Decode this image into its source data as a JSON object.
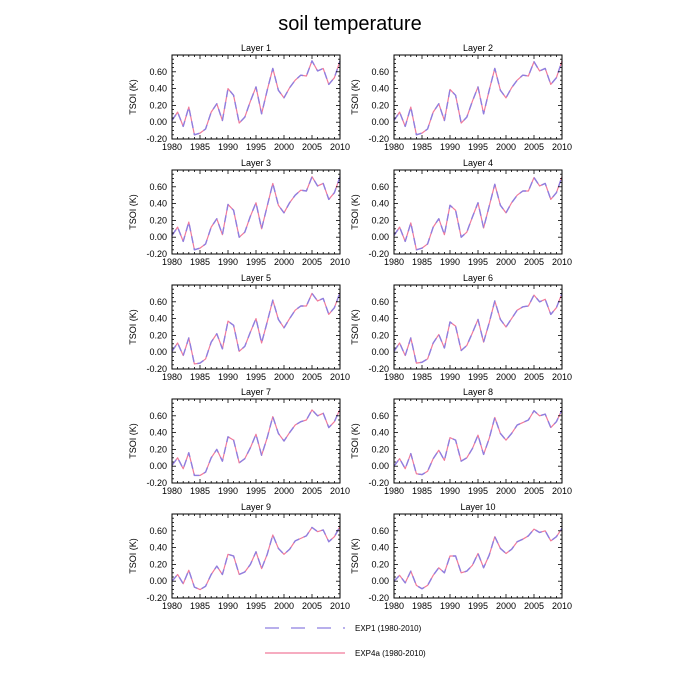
{
  "figure": {
    "title": "soil temperature"
  },
  "legend": {
    "placement": "bottom-center",
    "entries": [
      {
        "label": "EXP1 (1980-2010)",
        "color": "#8e7fe0",
        "style": "dashed"
      },
      {
        "label": "EXP4a (1980-2010)",
        "color": "#f07a9a",
        "style": "solid"
      }
    ]
  },
  "chart_data": {
    "type": "line",
    "x": [
      1980,
      1981,
      1982,
      1983,
      1984,
      1985,
      1986,
      1987,
      1988,
      1989,
      1990,
      1991,
      1992,
      1993,
      1994,
      1995,
      1996,
      1997,
      1998,
      1999,
      2000,
      2001,
      2002,
      2003,
      2004,
      2005,
      2006,
      2007,
      2008,
      2009,
      2010
    ],
    "xticks": [
      "1980",
      "1985",
      "1990",
      "1995",
      "2000",
      "2005",
      "2010"
    ],
    "yticks": [
      "-0.20",
      "0.00",
      "0.20",
      "0.40",
      "0.60"
    ],
    "xlim": [
      1980,
      2010
    ],
    "ylim": [
      -0.2,
      0.8
    ],
    "ylabel": "TSOI  (K)",
    "grid": false,
    "panels": [
      {
        "title": "Layer 1",
        "series": [
          {
            "name": "EXP1 (1980-2010)",
            "values": [
              0.02,
              0.12,
              -0.05,
              0.18,
              -0.15,
              -0.13,
              -0.08,
              0.12,
              0.22,
              0.02,
              0.4,
              0.32,
              -0.01,
              0.06,
              0.25,
              0.42,
              0.1,
              0.38,
              0.64,
              0.38,
              0.29,
              0.41,
              0.5,
              0.56,
              0.55,
              0.73,
              0.61,
              0.64,
              0.45,
              0.53,
              0.73
            ]
          },
          {
            "name": "EXP4a (1980-2010)",
            "values": [
              0.02,
              0.12,
              -0.05,
              0.18,
              -0.15,
              -0.13,
              -0.08,
              0.12,
              0.22,
              0.02,
              0.4,
              0.32,
              -0.01,
              0.06,
              0.25,
              0.42,
              0.1,
              0.38,
              0.64,
              0.38,
              0.29,
              0.41,
              0.5,
              0.56,
              0.55,
              0.73,
              0.61,
              0.64,
              0.45,
              0.53,
              0.73
            ]
          }
        ]
      },
      {
        "title": "Layer 2",
        "series": [
          {
            "name": "EXP1 (1980-2010)",
            "values": [
              0.02,
              0.12,
              -0.05,
              0.18,
              -0.15,
              -0.13,
              -0.08,
              0.12,
              0.22,
              0.02,
              0.39,
              0.32,
              -0.01,
              0.06,
              0.25,
              0.42,
              0.1,
              0.38,
              0.64,
              0.38,
              0.29,
              0.41,
              0.5,
              0.56,
              0.55,
              0.72,
              0.61,
              0.64,
              0.45,
              0.53,
              0.73
            ]
          },
          {
            "name": "EXP4a (1980-2010)",
            "values": [
              0.02,
              0.12,
              -0.05,
              0.18,
              -0.15,
              -0.13,
              -0.08,
              0.12,
              0.22,
              0.02,
              0.39,
              0.32,
              -0.01,
              0.06,
              0.25,
              0.42,
              0.1,
              0.38,
              0.64,
              0.38,
              0.29,
              0.41,
              0.5,
              0.56,
              0.55,
              0.72,
              0.61,
              0.64,
              0.45,
              0.53,
              0.73
            ]
          }
        ]
      },
      {
        "title": "Layer 3",
        "series": [
          {
            "name": "EXP1 (1980-2010)",
            "values": [
              0.02,
              0.12,
              -0.05,
              0.18,
              -0.15,
              -0.13,
              -0.08,
              0.12,
              0.22,
              0.03,
              0.39,
              0.32,
              0.0,
              0.06,
              0.25,
              0.41,
              0.1,
              0.37,
              0.64,
              0.38,
              0.29,
              0.41,
              0.5,
              0.56,
              0.55,
              0.72,
              0.61,
              0.64,
              0.45,
              0.53,
              0.72
            ]
          },
          {
            "name": "EXP4a (1980-2010)",
            "values": [
              0.02,
              0.12,
              -0.05,
              0.18,
              -0.15,
              -0.13,
              -0.08,
              0.12,
              0.22,
              0.03,
              0.39,
              0.32,
              0.0,
              0.06,
              0.25,
              0.41,
              0.1,
              0.37,
              0.64,
              0.38,
              0.29,
              0.41,
              0.5,
              0.56,
              0.55,
              0.72,
              0.61,
              0.64,
              0.45,
              0.53,
              0.72
            ]
          }
        ]
      },
      {
        "title": "Layer 4",
        "series": [
          {
            "name": "EXP1 (1980-2010)",
            "values": [
              0.02,
              0.12,
              -0.05,
              0.17,
              -0.15,
              -0.13,
              -0.08,
              0.12,
              0.22,
              0.03,
              0.38,
              0.32,
              0.0,
              0.06,
              0.24,
              0.41,
              0.11,
              0.37,
              0.63,
              0.38,
              0.29,
              0.41,
              0.5,
              0.55,
              0.55,
              0.71,
              0.61,
              0.64,
              0.45,
              0.53,
              0.72
            ]
          },
          {
            "name": "EXP4a (1980-2010)",
            "values": [
              0.02,
              0.12,
              -0.05,
              0.17,
              -0.15,
              -0.13,
              -0.08,
              0.12,
              0.22,
              0.03,
              0.38,
              0.32,
              0.0,
              0.06,
              0.24,
              0.41,
              0.11,
              0.37,
              0.63,
              0.38,
              0.29,
              0.41,
              0.5,
              0.55,
              0.55,
              0.71,
              0.61,
              0.64,
              0.45,
              0.53,
              0.72
            ]
          }
        ]
      },
      {
        "title": "Layer 5",
        "series": [
          {
            "name": "EXP1 (1980-2010)",
            "values": [
              0.01,
              0.11,
              -0.04,
              0.17,
              -0.14,
              -0.13,
              -0.08,
              0.12,
              0.22,
              0.04,
              0.37,
              0.32,
              0.01,
              0.07,
              0.24,
              0.4,
              0.11,
              0.36,
              0.62,
              0.39,
              0.29,
              0.4,
              0.5,
              0.55,
              0.55,
              0.7,
              0.61,
              0.64,
              0.45,
              0.53,
              0.71
            ]
          },
          {
            "name": "EXP4a (1980-2010)",
            "values": [
              0.01,
              0.11,
              -0.04,
              0.17,
              -0.14,
              -0.13,
              -0.08,
              0.12,
              0.22,
              0.04,
              0.37,
              0.32,
              0.01,
              0.07,
              0.24,
              0.4,
              0.11,
              0.36,
              0.62,
              0.39,
              0.29,
              0.4,
              0.5,
              0.55,
              0.55,
              0.7,
              0.61,
              0.64,
              0.45,
              0.53,
              0.71
            ]
          }
        ]
      },
      {
        "title": "Layer 6",
        "series": [
          {
            "name": "EXP1 (1980-2010)",
            "values": [
              0.01,
              0.11,
              -0.04,
              0.17,
              -0.13,
              -0.12,
              -0.08,
              0.11,
              0.21,
              0.05,
              0.36,
              0.31,
              0.02,
              0.08,
              0.23,
              0.39,
              0.12,
              0.35,
              0.61,
              0.39,
              0.3,
              0.4,
              0.5,
              0.54,
              0.55,
              0.68,
              0.6,
              0.63,
              0.45,
              0.53,
              0.7
            ]
          },
          {
            "name": "EXP4a (1980-2010)",
            "values": [
              0.01,
              0.11,
              -0.04,
              0.17,
              -0.13,
              -0.12,
              -0.08,
              0.11,
              0.21,
              0.05,
              0.36,
              0.31,
              0.02,
              0.08,
              0.23,
              0.39,
              0.12,
              0.35,
              0.61,
              0.39,
              0.3,
              0.4,
              0.5,
              0.54,
              0.55,
              0.68,
              0.6,
              0.63,
              0.45,
              0.53,
              0.7
            ]
          }
        ]
      },
      {
        "title": "Layer 7",
        "series": [
          {
            "name": "EXP1 (1980-2010)",
            "values": [
              0.01,
              0.1,
              -0.03,
              0.16,
              -0.11,
              -0.11,
              -0.07,
              0.1,
              0.2,
              0.06,
              0.35,
              0.31,
              0.04,
              0.09,
              0.22,
              0.38,
              0.13,
              0.34,
              0.59,
              0.39,
              0.3,
              0.4,
              0.49,
              0.53,
              0.55,
              0.67,
              0.6,
              0.63,
              0.46,
              0.53,
              0.68
            ]
          },
          {
            "name": "EXP4a (1980-2010)",
            "values": [
              0.01,
              0.1,
              -0.03,
              0.16,
              -0.11,
              -0.11,
              -0.07,
              0.1,
              0.2,
              0.06,
              0.35,
              0.31,
              0.04,
              0.09,
              0.22,
              0.38,
              0.13,
              0.34,
              0.59,
              0.39,
              0.3,
              0.4,
              0.49,
              0.53,
              0.55,
              0.67,
              0.6,
              0.63,
              0.46,
              0.53,
              0.68
            ]
          }
        ]
      },
      {
        "title": "Layer 8",
        "series": [
          {
            "name": "EXP1 (1980-2010)",
            "values": [
              0.0,
              0.09,
              -0.03,
              0.15,
              -0.09,
              -0.1,
              -0.06,
              0.09,
              0.19,
              0.07,
              0.34,
              0.31,
              0.06,
              0.1,
              0.21,
              0.37,
              0.14,
              0.33,
              0.58,
              0.39,
              0.31,
              0.39,
              0.49,
              0.52,
              0.55,
              0.66,
              0.6,
              0.62,
              0.46,
              0.53,
              0.67
            ]
          },
          {
            "name": "EXP4a (1980-2010)",
            "values": [
              0.0,
              0.09,
              -0.03,
              0.15,
              -0.09,
              -0.1,
              -0.06,
              0.09,
              0.19,
              0.07,
              0.34,
              0.31,
              0.06,
              0.1,
              0.21,
              0.37,
              0.14,
              0.33,
              0.58,
              0.39,
              0.31,
              0.39,
              0.49,
              0.52,
              0.55,
              0.66,
              0.6,
              0.62,
              0.46,
              0.53,
              0.67
            ]
          }
        ]
      },
      {
        "title": "Layer 9",
        "series": [
          {
            "name": "EXP1 (1980-2010)",
            "values": [
              0.0,
              0.08,
              -0.03,
              0.13,
              -0.07,
              -0.1,
              -0.06,
              0.08,
              0.18,
              0.08,
              0.32,
              0.3,
              0.08,
              0.11,
              0.2,
              0.35,
              0.15,
              0.32,
              0.55,
              0.39,
              0.32,
              0.38,
              0.48,
              0.51,
              0.54,
              0.64,
              0.59,
              0.61,
              0.47,
              0.53,
              0.65
            ]
          },
          {
            "name": "EXP4a (1980-2010)",
            "values": [
              0.0,
              0.08,
              -0.03,
              0.13,
              -0.07,
              -0.1,
              -0.06,
              0.08,
              0.18,
              0.08,
              0.32,
              0.3,
              0.08,
              0.11,
              0.2,
              0.35,
              0.15,
              0.32,
              0.55,
              0.39,
              0.32,
              0.38,
              0.48,
              0.51,
              0.54,
              0.64,
              0.59,
              0.61,
              0.47,
              0.53,
              0.65
            ]
          }
        ]
      },
      {
        "title": "Layer 10",
        "series": [
          {
            "name": "EXP1 (1980-2010)",
            "values": [
              0.0,
              0.07,
              -0.02,
              0.12,
              -0.05,
              -0.09,
              -0.05,
              0.07,
              0.16,
              0.1,
              0.3,
              0.3,
              0.1,
              0.12,
              0.19,
              0.33,
              0.16,
              0.31,
              0.53,
              0.39,
              0.33,
              0.38,
              0.47,
              0.5,
              0.54,
              0.62,
              0.58,
              0.6,
              0.48,
              0.53,
              0.63
            ]
          },
          {
            "name": "EXP4a (1980-2010)",
            "values": [
              0.0,
              0.07,
              -0.02,
              0.12,
              -0.05,
              -0.09,
              -0.05,
              0.07,
              0.16,
              0.1,
              0.3,
              0.3,
              0.1,
              0.12,
              0.19,
              0.33,
              0.16,
              0.31,
              0.53,
              0.39,
              0.33,
              0.38,
              0.47,
              0.5,
              0.54,
              0.62,
              0.58,
              0.6,
              0.48,
              0.53,
              0.63
            ]
          }
        ]
      }
    ]
  }
}
